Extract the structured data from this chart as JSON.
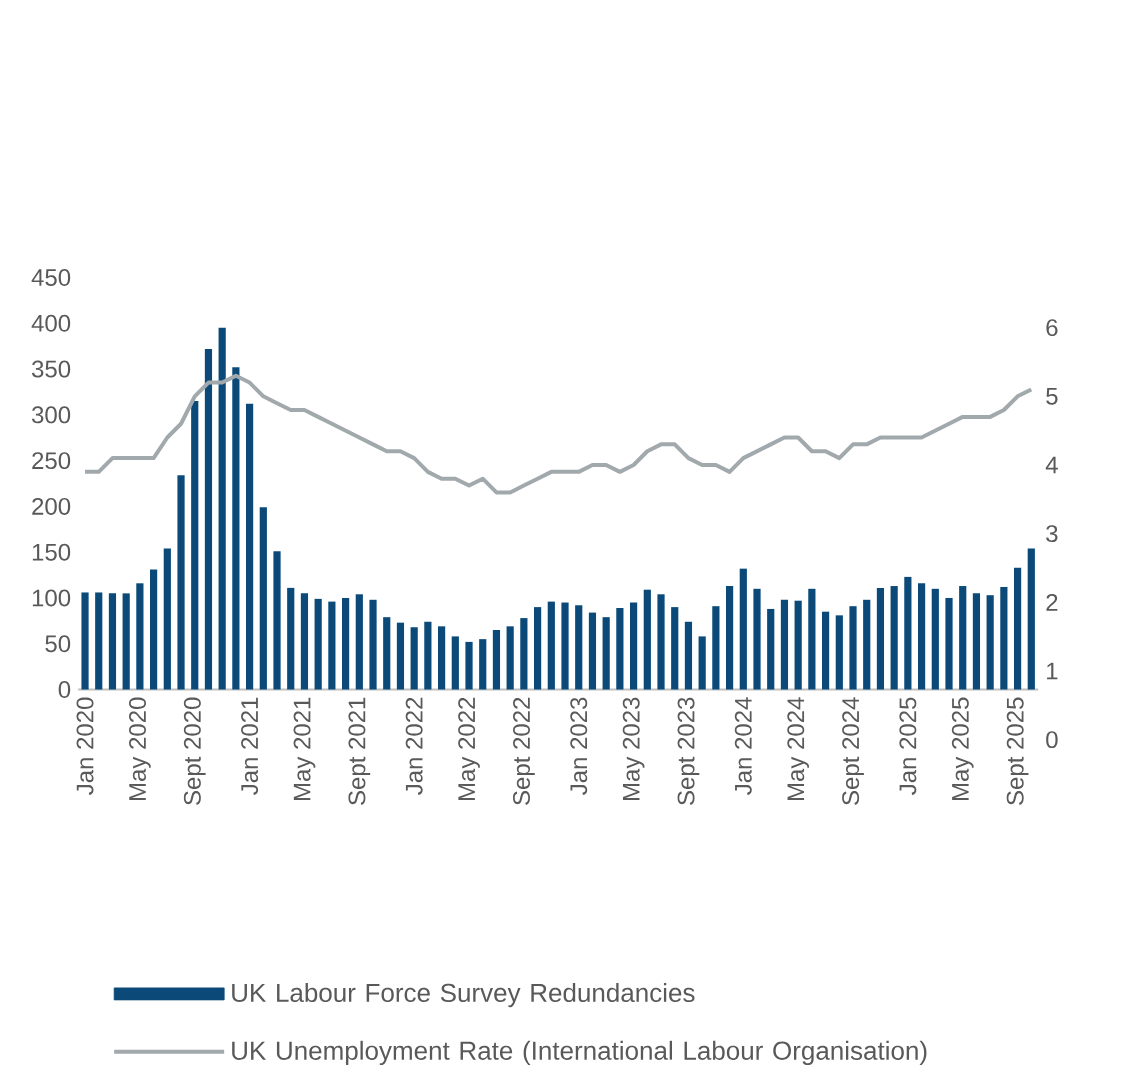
{
  "chart_data": {
    "type": "bar",
    "categories": [
      "Jan 2020",
      null,
      null,
      null,
      "May 2020",
      null,
      null,
      null,
      "Sept 2020",
      null,
      null,
      null,
      "Jan 2021",
      null,
      null,
      null,
      "May 2021",
      null,
      null,
      null,
      "Sept 2021",
      null,
      null,
      null,
      "Jan 2022",
      null,
      null,
      null,
      "May 2022",
      null,
      null,
      null,
      "Sept 2022",
      null,
      null,
      null,
      "Jan 2023",
      null,
      null,
      null,
      "May 2023",
      null,
      null,
      null,
      "Sept 2023",
      null,
      null,
      null,
      "Jan 2024",
      null,
      null,
      null,
      "May 2024",
      null,
      null,
      null,
      "Sept 2024",
      null,
      null,
      null,
      "Jan 2025",
      null,
      null,
      null,
      "May 2025",
      null,
      null,
      null,
      "Sept 2025",
      null
    ],
    "series": [
      {
        "name": "UK Labour Force Survey Redundancies",
        "color": "#0b4a78",
        "values": [
          106,
          106,
          105,
          105,
          116,
          131,
          154,
          234,
          315,
          372,
          395,
          352,
          312,
          199,
          151,
          111,
          105,
          99,
          96,
          100,
          104,
          98,
          79,
          73,
          68,
          74,
          69,
          58,
          52,
          55,
          65,
          69,
          78,
          90,
          96,
          95,
          92,
          84,
          79,
          89,
          95,
          109,
          104,
          90,
          74,
          58,
          91,
          113,
          132,
          110,
          88,
          98,
          97,
          110,
          85,
          81,
          91,
          98,
          111,
          113,
          123,
          116,
          110,
          100,
          113,
          105,
          103,
          112,
          133,
          154
        ]
      },
      {
        "name": "UK Unemployment Rate (International Labour Organisation)",
        "type": "line",
        "axis": "y2",
        "color": "#a2a9ad",
        "values": [
          3.9,
          3.9,
          4.1,
          4.1,
          4.1,
          4.1,
          4.4,
          4.6,
          5.0,
          5.2,
          5.2,
          5.3,
          5.2,
          5.0,
          4.9,
          4.8,
          4.8,
          4.7,
          4.6,
          4.5,
          4.4,
          4.3,
          4.2,
          4.2,
          4.1,
          3.9,
          3.8,
          3.8,
          3.7,
          3.8,
          3.6,
          3.6,
          3.7,
          3.8,
          3.9,
          3.9,
          3.9,
          4.0,
          4.0,
          3.9,
          4.0,
          4.2,
          4.3,
          4.3,
          4.1,
          4.0,
          4.0,
          3.9,
          4.1,
          4.2,
          4.3,
          4.4,
          4.4,
          4.2,
          4.2,
          4.1,
          4.3,
          4.3,
          4.4,
          4.4,
          4.4,
          4.4,
          4.5,
          4.6,
          4.7,
          4.7,
          4.7,
          4.8,
          5.0,
          5.1
        ]
      }
    ],
    "ylim": [
      0,
      450
    ],
    "yticks": [
      0,
      50,
      100,
      150,
      200,
      250,
      300,
      350,
      400,
      450
    ],
    "y2lim": [
      0,
      6
    ],
    "y2ticks": [
      0,
      1,
      2,
      3,
      4,
      5,
      6
    ],
    "legend": "bottom",
    "grid": false
  }
}
